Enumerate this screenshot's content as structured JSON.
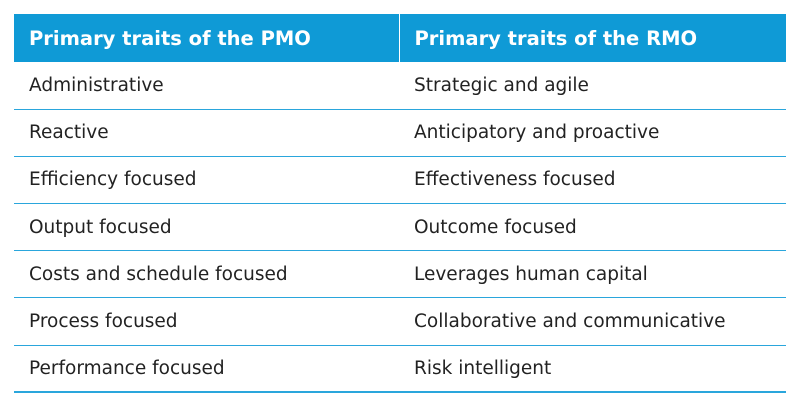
{
  "table": {
    "headers": [
      "Primary traits of the PMO",
      "Primary traits of the RMO"
    ],
    "rows": [
      [
        "Administrative",
        "Strategic and agile"
      ],
      [
        "Reactive",
        "Anticipatory and proactive"
      ],
      [
        "Efficiency focused",
        "Effectiveness focused"
      ],
      [
        "Output focused",
        "Outcome focused"
      ],
      [
        "Costs and schedule focused",
        "Leverages human capital"
      ],
      [
        "Process focused",
        "Collaborative and communicative"
      ],
      [
        "Performance focused",
        "Risk intelligent"
      ]
    ]
  },
  "colors": {
    "header_bg": "#0f9ad6",
    "header_text": "#ffffff",
    "rule": "#2aa6dc",
    "body_text": "#222222"
  }
}
